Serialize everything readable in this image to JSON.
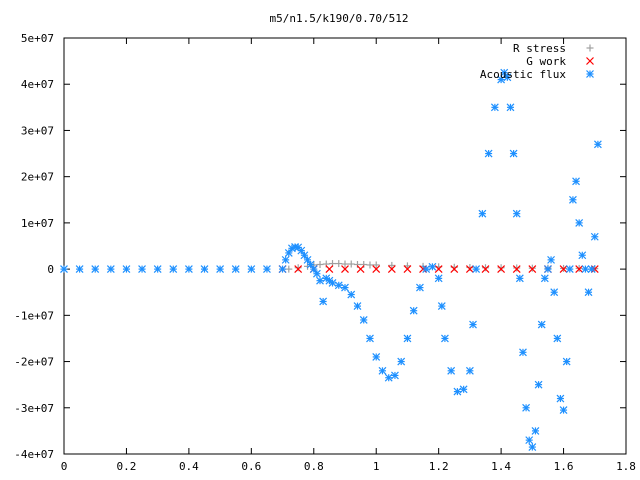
{
  "chart_data": {
    "type": "scatter",
    "title": "m5/n1.5/k190/0.70/512",
    "xlabel": "",
    "ylabel": "",
    "xlim": [
      0,
      1.8
    ],
    "ylim": [
      -40000000,
      50000000
    ],
    "x_ticks": [
      0,
      0.2,
      0.4,
      0.6,
      0.8,
      1.0,
      1.2,
      1.4,
      1.6,
      1.8
    ],
    "x_tick_labels": [
      "0",
      "0.2",
      "0.4",
      "0.6",
      "0.8",
      "1",
      "1.2",
      "1.4",
      "1.6",
      "1.8"
    ],
    "y_ticks": [
      -40000000,
      -30000000,
      -20000000,
      -10000000,
      0,
      10000000,
      20000000,
      30000000,
      40000000,
      50000000
    ],
    "y_tick_labels": [
      "-4e+07",
      "-3e+07",
      "-2e+07",
      "-1e+07",
      "0",
      "1e+07",
      "2e+07",
      "3e+07",
      "4e+07",
      "5e+07"
    ],
    "grid": false,
    "legend_position": "top-right",
    "series": [
      {
        "name": "R stress",
        "marker": "+",
        "color": "#a0a0a0",
        "x": [
          0.72,
          0.75,
          0.78,
          0.8,
          0.82,
          0.84,
          0.86,
          0.88,
          0.9,
          0.92,
          0.94,
          0.96,
          0.98,
          1.0,
          1.05,
          1.1,
          1.15,
          1.2,
          1.25,
          1.3,
          1.35,
          1.4,
          1.45,
          1.5,
          1.55,
          1.6,
          1.65,
          1.7
        ],
        "y": [
          0,
          300000,
          600000,
          900000,
          1000000,
          1100000,
          1200000,
          1200000,
          1100000,
          1100000,
          1000000,
          1000000,
          900000,
          900000,
          800000,
          700000,
          600000,
          500000,
          400000,
          350000,
          300000,
          300000,
          250000,
          200000,
          200000,
          150000,
          150000,
          100000
        ]
      },
      {
        "name": "G work",
        "marker": "x",
        "color": "#ff0000",
        "x": [
          0.7,
          0.75,
          0.8,
          0.85,
          0.9,
          0.95,
          1.0,
          1.05,
          1.1,
          1.15,
          1.2,
          1.25,
          1.3,
          1.35,
          1.4,
          1.45,
          1.5,
          1.55,
          1.6,
          1.65,
          1.7
        ],
        "y": [
          0,
          0,
          0,
          0,
          0,
          0,
          0,
          0,
          0,
          0,
          0,
          0,
          0,
          0,
          0,
          0,
          0,
          0,
          0,
          0,
          0
        ]
      },
      {
        "name": "Acoustic flux",
        "marker": "*",
        "color": "#1e90ff",
        "x": [
          0.0,
          0.05,
          0.1,
          0.15,
          0.2,
          0.25,
          0.3,
          0.35,
          0.4,
          0.45,
          0.5,
          0.55,
          0.6,
          0.65,
          0.7,
          0.71,
          0.72,
          0.73,
          0.74,
          0.75,
          0.76,
          0.77,
          0.78,
          0.79,
          0.8,
          0.81,
          0.82,
          0.83,
          0.84,
          0.85,
          0.86,
          0.88,
          0.9,
          0.92,
          0.94,
          0.96,
          0.98,
          1.0,
          1.02,
          1.04,
          1.06,
          1.08,
          1.1,
          1.12,
          1.14,
          1.16,
          1.18,
          1.2,
          1.21,
          1.22,
          1.24,
          1.26,
          1.28,
          1.3,
          1.31,
          1.32,
          1.34,
          1.36,
          1.38,
          1.4,
          1.41,
          1.42,
          1.43,
          1.44,
          1.45,
          1.46,
          1.47,
          1.48,
          1.49,
          1.5,
          1.51,
          1.52,
          1.53,
          1.54,
          1.55,
          1.56,
          1.57,
          1.58,
          1.59,
          1.6,
          1.61,
          1.62,
          1.63,
          1.64,
          1.65,
          1.66,
          1.67,
          1.68,
          1.69,
          1.7,
          1.71
        ],
        "y": [
          0,
          0,
          0,
          0,
          0,
          0,
          0,
          0,
          0,
          0,
          0,
          0,
          0,
          0,
          0,
          2000000,
          3500000,
          4500000,
          4800000,
          4700000,
          4000000,
          3000000,
          2000000,
          1000000,
          0,
          -1000000,
          -2500000,
          -7000000,
          -2000000,
          -2500000,
          -3000000,
          -3500000,
          -4000000,
          -5500000,
          -8000000,
          -11000000,
          -15000000,
          -19000000,
          -22000000,
          -23500000,
          -23000000,
          -20000000,
          -15000000,
          -9000000,
          -4000000,
          0,
          500000,
          -2000000,
          -8000000,
          -15000000,
          -22000000,
          -26500000,
          -26000000,
          -22000000,
          -12000000,
          0,
          12000000,
          25000000,
          35000000,
          41000000,
          42500000,
          41500000,
          35000000,
          25000000,
          12000000,
          -2000000,
          -18000000,
          -30000000,
          -37000000,
          -38500000,
          -35000000,
          -25000000,
          -12000000,
          -2000000,
          0,
          2000000,
          -5000000,
          -15000000,
          -28000000,
          -30500000,
          -20000000,
          0,
          15000000,
          19000000,
          10000000,
          3000000,
          0,
          -5000000,
          0,
          7000000,
          27000000
        ]
      }
    ]
  }
}
